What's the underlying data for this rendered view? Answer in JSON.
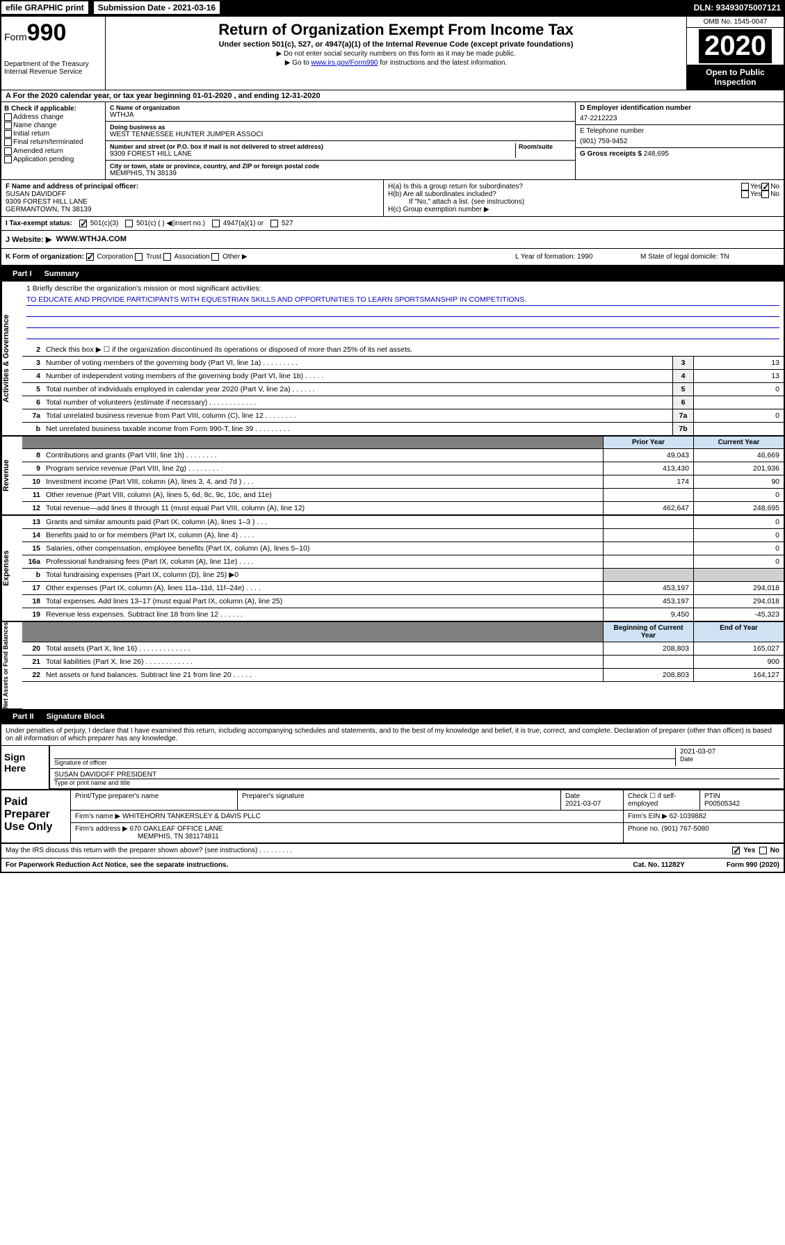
{
  "top": {
    "efile": "efile GRAPHIC print",
    "submission_label": "Submission Date - 2021-03-16",
    "dln": "DLN: 93493075007121"
  },
  "header": {
    "form_prefix": "Form",
    "form_number": "990",
    "dept1": "Department of the Treasury",
    "dept2": "Internal Revenue Service",
    "title": "Return of Organization Exempt From Income Tax",
    "subtitle": "Under section 501(c), 527, or 4947(a)(1) of the Internal Revenue Code (except private foundations)",
    "note1": "▶ Do not enter social security numbers on this form as it may be made public.",
    "note2_pre": "▶ Go to ",
    "note2_link": "www.irs.gov/Form990",
    "note2_post": " for instructions and the latest information.",
    "omb": "OMB No. 1545-0047",
    "year": "2020",
    "open": "Open to Public Inspection"
  },
  "lineA": "A For the 2020 calendar year, or tax year beginning 01-01-2020    , and ending 12-31-2020",
  "colB": {
    "label": "B Check if applicable:",
    "opts": [
      "Address change",
      "Name change",
      "Initial return",
      "Final return/terminated",
      "Amended return",
      "Application pending"
    ]
  },
  "colC": {
    "name_label": "C Name of organization",
    "name": "WTHJA",
    "dba_label": "Doing business as",
    "dba": "WEST TENNESSEE HUNTER JUMPER ASSOCI",
    "addr_label": "Number and street (or P.O. box if mail is not delivered to street address)",
    "addr": "9309 FOREST HILL LANE",
    "room_label": "Room/suite",
    "city_label": "City or town, state or province, country, and ZIP or foreign postal code",
    "city": "MEMPHIS, TN  38139"
  },
  "colD": {
    "ein_label": "D Employer identification number",
    "ein": "47-2212223",
    "phone_label": "E Telephone number",
    "phone": "(901) 759-9452",
    "gross_label": "G Gross receipts $",
    "gross": "248,695"
  },
  "rowF": {
    "label": "F  Name and address of principal officer:",
    "name": "SUSAN DAVIDOFF",
    "addr1": "9309 FOREST HILL LANE",
    "addr2": "GERMANTOWN, TN  38139"
  },
  "rowH": {
    "ha": "H(a)  Is this a group return for subordinates?",
    "hb": "H(b)  Are all subordinates included?",
    "hb_note": "If \"No,\" attach a list. (see instructions)",
    "hc": "H(c)  Group exemption number ▶"
  },
  "taxExempt": {
    "label": "I    Tax-exempt status:",
    "opt1": "501(c)(3)",
    "opt2": "501(c) (   ) ◀(insert no.)",
    "opt3": "4947(a)(1) or",
    "opt4": "527"
  },
  "website": {
    "label": "J   Website: ▶",
    "value": "WWW.WTHJA.COM"
  },
  "rowK": {
    "k": "K Form of organization:",
    "k_opts": [
      "Corporation",
      "Trust",
      "Association",
      "Other ▶"
    ],
    "l": "L Year of formation: 1990",
    "m": "M State of legal domicile: TN"
  },
  "partI": {
    "part": "Part I",
    "title": "Summary"
  },
  "mission": {
    "q1": "1  Briefly describe the organization's mission or most significant activities:",
    "text": "TO EDUCATE AND PROVIDE PARTICIPANTS WITH EQUESTRIAN SKILLS AND OPPORTUNITIES TO LEARN SPORTSMANSHIP IN COMPETITIONS."
  },
  "govRows": [
    {
      "n": "2",
      "d": "Check this box ▶ ☐  if the organization discontinued its operations or disposed of more than 25% of its net assets.",
      "b": "",
      "v": ""
    },
    {
      "n": "3",
      "d": "Number of voting members of the governing body (Part VI, line 1a)   .    .    .    .    .    .    .    .    .",
      "b": "3",
      "v": "13"
    },
    {
      "n": "4",
      "d": "Number of independent voting members of the governing body (Part VI, line 1b)   .    .    .    .    .",
      "b": "4",
      "v": "13"
    },
    {
      "n": "5",
      "d": "Total number of individuals employed in calendar year 2020 (Part V, line 2a)   .    .    .    .    .    .",
      "b": "5",
      "v": "0"
    },
    {
      "n": "6",
      "d": "Total number of volunteers (estimate if necessary)   .    .    .    .    .    .    .    .    .    .    .    .",
      "b": "6",
      "v": ""
    },
    {
      "n": "7a",
      "d": "Total unrelated business revenue from Part VIII, column (C), line 12   .    .    .    .    .    .    .    .",
      "b": "7a",
      "v": "0"
    },
    {
      "n": "b",
      "d": "Net unrelated business taxable income from Form 990-T, line 39   .    .    .    .    .    .    .    .    .",
      "b": "7b",
      "v": ""
    }
  ],
  "colHeaders": {
    "prior": "Prior Year",
    "current": "Current Year"
  },
  "revRows": [
    {
      "n": "8",
      "d": "Contributions and grants (Part VIII, line 1h)   .    .    .    .    .    .    .    .",
      "p": "49,043",
      "c": "46,669"
    },
    {
      "n": "9",
      "d": "Program service revenue (Part VIII, line 2g)   .    .    .    .    .    .    .    .",
      "p": "413,430",
      "c": "201,936"
    },
    {
      "n": "10",
      "d": "Investment income (Part VIII, column (A), lines 3, 4, and 7d )   .    .    .",
      "p": "174",
      "c": "90"
    },
    {
      "n": "11",
      "d": "Other revenue (Part VIII, column (A), lines 5, 6d, 8c, 9c, 10c, and 11e)",
      "p": "",
      "c": "0"
    },
    {
      "n": "12",
      "d": "Total revenue—add lines 8 through 11 (must equal Part VIII, column (A), line 12)",
      "p": "462,647",
      "c": "248,695"
    }
  ],
  "expRows": [
    {
      "n": "13",
      "d": "Grants and similar amounts paid (Part IX, column (A), lines 1–3 )   .    .    .",
      "p": "",
      "c": "0"
    },
    {
      "n": "14",
      "d": "Benefits paid to or for members (Part IX, column (A), line 4)   .    .    .    .",
      "p": "",
      "c": "0"
    },
    {
      "n": "15",
      "d": "Salaries, other compensation, employee benefits (Part IX, column (A), lines 5–10)",
      "p": "",
      "c": "0"
    },
    {
      "n": "16a",
      "d": "Professional fundraising fees (Part IX, column (A), line 11e)   .    .    .    .",
      "p": "",
      "c": "0"
    },
    {
      "n": "b",
      "d": "Total fundraising expenses (Part IX, column (D), line 25) ▶0",
      "p": "",
      "c": "",
      "shaded": true
    },
    {
      "n": "17",
      "d": "Other expenses (Part IX, column (A), lines 11a–11d, 11f–24e)   .    .    .    .",
      "p": "453,197",
      "c": "294,018"
    },
    {
      "n": "18",
      "d": "Total expenses. Add lines 13–17 (must equal Part IX, column (A), line 25)",
      "p": "453,197",
      "c": "294,018"
    },
    {
      "n": "19",
      "d": "Revenue less expenses. Subtract line 18 from line 12   .    .    .    .    .    .",
      "p": "9,450",
      "c": "-45,323"
    }
  ],
  "colHeaders2": {
    "begin": "Beginning of Current Year",
    "end": "End of Year"
  },
  "netRows": [
    {
      "n": "20",
      "d": "Total assets (Part X, line 16)   .    .    .    .    .    .    .    .    .    .    .    .    .",
      "p": "208,803",
      "c": "165,027"
    },
    {
      "n": "21",
      "d": "Total liabilities (Part X, line 26)   .    .    .    .    .    .    .    .    .    .    .    .",
      "p": "",
      "c": "900"
    },
    {
      "n": "22",
      "d": "Net assets or fund balances. Subtract line 21 from line 20   .    .    .    .    .",
      "p": "208,803",
      "c": "164,127"
    }
  ],
  "partII": {
    "part": "Part II",
    "title": "Signature Block"
  },
  "sig": {
    "penalty": "Under penalties of perjury, I declare that I have examined this return, including accompanying schedules and statements, and to the best of my knowledge and belief, it is true, correct, and complete. Declaration of preparer (other than officer) is based on all information of which preparer has any knowledge.",
    "sign_here": "Sign Here",
    "sig_label": "Signature of officer",
    "date": "2021-03-07",
    "date_label": "Date",
    "name": "SUSAN DAVIDOFF PRESIDENT",
    "name_label": "Type or print name and title"
  },
  "paid": {
    "label": "Paid Preparer Use Only",
    "h1": "Print/Type preparer's name",
    "h2": "Preparer's signature",
    "h3": "Date",
    "h3v": "2021-03-07",
    "h4": "Check ☐ if self-employed",
    "h5": "PTIN",
    "h5v": "P00505342",
    "firm_label": "Firm's name    ▶",
    "firm": "WHITEHORN TANKERSLEY & DAVIS PLLC",
    "ein_label": "Firm's EIN ▶",
    "ein": "62-1039882",
    "addr_label": "Firm's address ▶",
    "addr1": "670 OAKLEAF OFFICE LANE",
    "addr2": "MEMPHIS, TN  381174811",
    "phone_label": "Phone no.",
    "phone": "(901) 767-5080"
  },
  "footer": {
    "discuss": "May the IRS discuss this return with the preparer shown above? (see instructions)   .    .    .    .    .    .    .    .    .",
    "yes": "Yes",
    "no": "No",
    "paperwork": "For Paperwork Reduction Act Notice, see the separate instructions.",
    "cat": "Cat. No. 11282Y",
    "form": "Form 990 (2020)"
  },
  "vertLabels": {
    "gov": "Activities & Governance",
    "rev": "Revenue",
    "exp": "Expenses",
    "net": "Net Assets or Fund Balances"
  }
}
